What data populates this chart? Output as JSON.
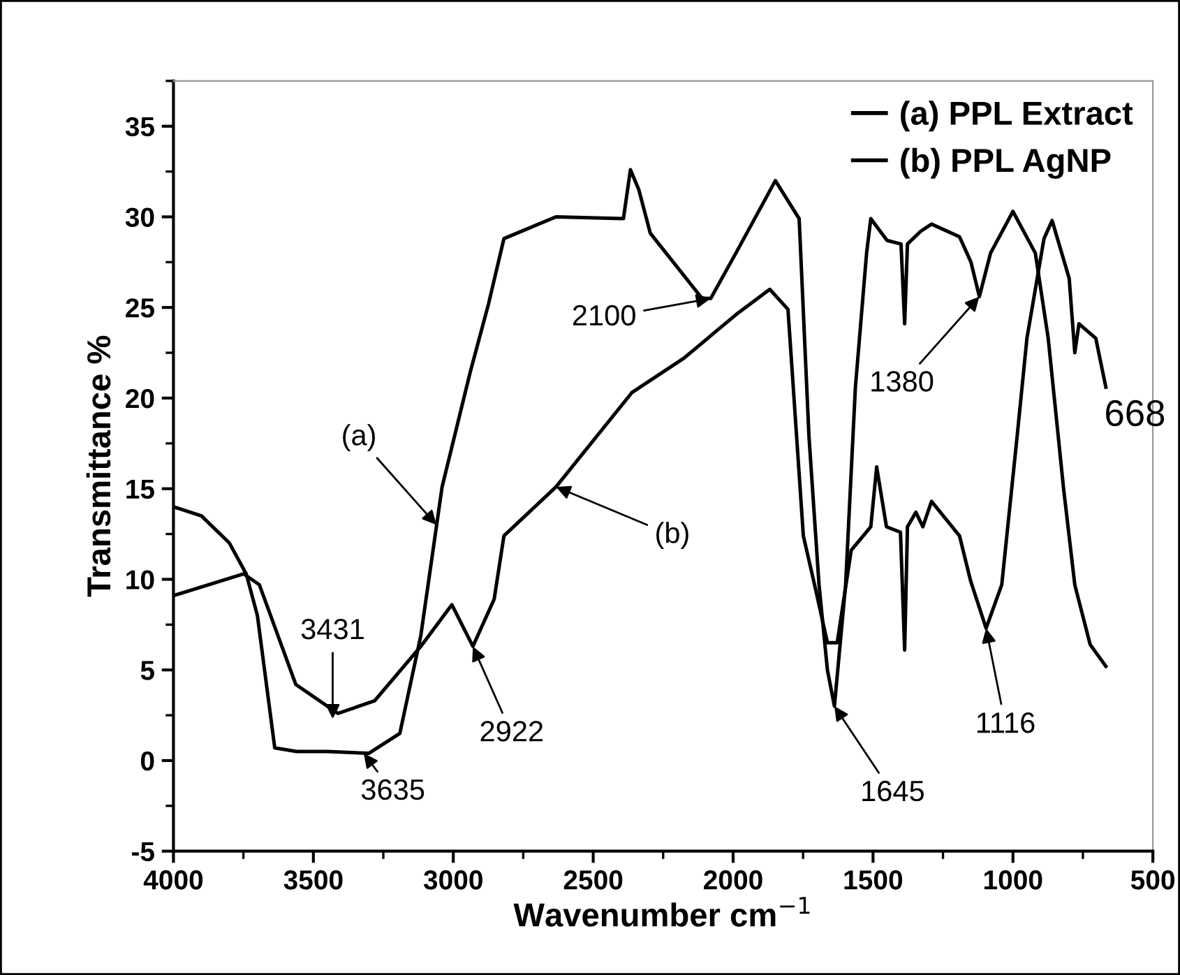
{
  "chart_data": {
    "type": "line",
    "xlabel": "Wavenumber cm$^{−1}$",
    "ylabel": "Transmittance %",
    "xlim": [
      4000,
      500
    ],
    "xticks": [
      4000,
      3500,
      3000,
      2500,
      2000,
      1500,
      1000,
      500
    ],
    "ylim": [
      -5,
      37.5
    ],
    "yticks": [
      -5,
      0,
      5,
      10,
      15,
      20,
      25,
      30,
      35
    ],
    "legend": "top right",
    "grid": false,
    "marker": "none",
    "line_style": "solid",
    "series": [
      {
        "name": "(a) PPL Extract",
        "color": "#000000",
        "x": [
          4000,
          3900,
          3800,
          3740,
          3700,
          3638,
          3560,
          3450,
          3302,
          3191,
          3116,
          3040,
          2940,
          2874,
          2819,
          2633,
          2392,
          2367,
          2337,
          2296,
          2111,
          2080,
          1990,
          1849,
          1764,
          1729,
          1693,
          1663,
          1638,
          1598,
          1563,
          1523,
          1508,
          1450,
          1400,
          1387,
          1377,
          1330,
          1291,
          1191,
          1150,
          1120,
          1080,
          1000,
          920,
          874,
          819,
          779,
          724,
          668
        ],
        "values": [
          14,
          13.5,
          12,
          10.3,
          8,
          0.7,
          0.5,
          0.5,
          0.4,
          1.5,
          6.9,
          15.1,
          21.4,
          25.2,
          28.8,
          30,
          29.9,
          32.6,
          31.5,
          29.1,
          25.5,
          25.5,
          28,
          32,
          29.9,
          17.9,
          9.7,
          5,
          3,
          9.7,
          20.6,
          28,
          29.9,
          28.7,
          28.5,
          24.1,
          28.5,
          29.2,
          29.6,
          28.9,
          27.5,
          25.6,
          28,
          30.3,
          28,
          23.3,
          15,
          9.7,
          6.4,
          5.2
        ]
      },
      {
        "name": "(b) PPL AgNP",
        "color": "#000000",
        "x": [
          4000,
          3749,
          3693,
          3563,
          3412,
          3281,
          3116,
          3005,
          2930,
          2854,
          2819,
          2633,
          2362,
          2176,
          1990,
          1869,
          1804,
          1749,
          1709,
          1663,
          1628,
          1578,
          1508,
          1487,
          1452,
          1402,
          1387,
          1377,
          1347,
          1322,
          1291,
          1191,
          1151,
          1096,
          1040,
          985,
          950,
          889,
          860,
          799,
          779,
          764,
          704,
          668
        ],
        "values": [
          9.1,
          10.3,
          9.7,
          4.2,
          2.6,
          3.3,
          6.3,
          8.6,
          6.3,
          8.9,
          12.4,
          15.1,
          20.3,
          22.2,
          24.6,
          26,
          24.9,
          12.4,
          9.7,
          6.5,
          6.5,
          11.6,
          12.9,
          16.2,
          12.9,
          12.6,
          6.1,
          12.9,
          13.7,
          12.9,
          14.3,
          12.4,
          9.9,
          7.3,
          9.7,
          17.9,
          23.3,
          28.8,
          29.8,
          26.6,
          22.5,
          24.1,
          23.3,
          20.6
        ]
      }
    ],
    "annotations": [
      {
        "text": "(a)",
        "x": 3060,
        "y": 13
      },
      {
        "text": "(b)",
        "x": 2633,
        "y": 15.1
      },
      {
        "text": "3431",
        "x": 3431,
        "y": 2.3
      },
      {
        "text": "3635",
        "x": 3320,
        "y": 0.4
      },
      {
        "text": "2922",
        "x": 2930,
        "y": 6.3
      },
      {
        "text": "2100",
        "x": 2080,
        "y": 25.5
      },
      {
        "text": "1645",
        "x": 1638,
        "y": 3
      },
      {
        "text": "1380",
        "x": 1120,
        "y": 25.6
      },
      {
        "text": "1116",
        "x": 1096,
        "y": 7.3
      },
      {
        "text": "668",
        "x": 668,
        "y": 20.6
      }
    ]
  }
}
